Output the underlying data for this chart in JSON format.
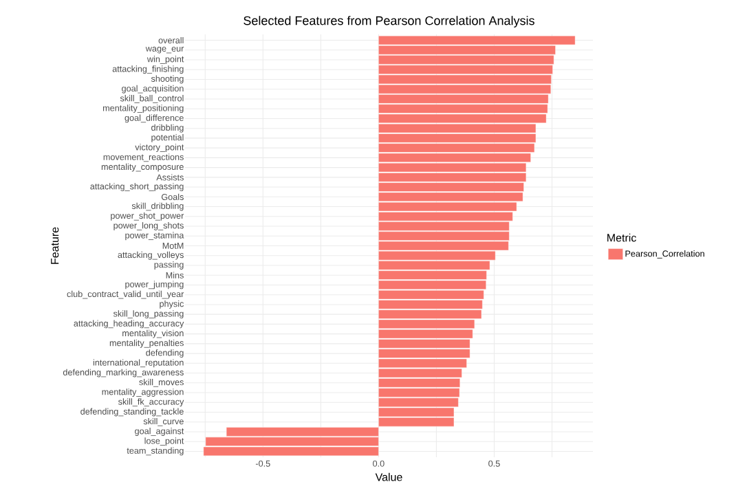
{
  "chart_data": {
    "type": "bar",
    "orientation": "horizontal",
    "title": "Selected Features from Pearson Correlation Analysis",
    "xlabel": "Value",
    "ylabel": "Feature",
    "legend_title": "Metric",
    "legend": "right",
    "grid": true,
    "categories": [
      "overall",
      "wage_eur",
      "win_point",
      "attacking_finishing",
      "shooting",
      "goal_acquisition",
      "skill_ball_control",
      "mentality_positioning",
      "goal_difference",
      "dribbling",
      "potential",
      "victory_point",
      "movement_reactions",
      "mentality_composure",
      "Assists",
      "attacking_short_passing",
      "Goals",
      "skill_dribbling",
      "power_shot_power",
      "power_long_shots",
      "power_stamina",
      "MotM",
      "attacking_volleys",
      "passing",
      "Mins",
      "power_jumping",
      "club_contract_valid_until_year",
      "physic",
      "skill_long_passing",
      "attacking_heading_accuracy",
      "mentality_vision",
      "mentality_penalties",
      "defending",
      "international_reputation",
      "defending_marking_awareness",
      "skill_moves",
      "mentality_aggression",
      "skill_fk_accuracy",
      "defending_standing_tackle",
      "skill_curve",
      "goal_against",
      "lose_point",
      "team_standing"
    ],
    "series": [
      {
        "name": "Pearson_Correlation",
        "color": "#f8766d",
        "values": [
          0.85,
          0.765,
          0.758,
          0.753,
          0.747,
          0.745,
          0.734,
          0.731,
          0.725,
          0.68,
          0.68,
          0.674,
          0.658,
          0.638,
          0.638,
          0.628,
          0.624,
          0.597,
          0.58,
          0.565,
          0.565,
          0.562,
          0.505,
          0.481,
          0.467,
          0.465,
          0.455,
          0.449,
          0.445,
          0.415,
          0.407,
          0.395,
          0.395,
          0.381,
          0.36,
          0.352,
          0.35,
          0.345,
          0.326,
          0.326,
          -0.658,
          -0.748,
          -0.757
        ]
      }
    ],
    "xlim": [
      -0.837,
      0.927
    ],
    "xticks": [
      {
        "value": -0.75,
        "label": null
      },
      -0.5,
      {
        "value": -0.25,
        "label": null
      },
      {
        "value": 0,
        "label": "0.0"
      },
      {
        "value": 0.25,
        "label": null
      },
      0.5,
      {
        "value": 0.75,
        "label": null
      }
    ]
  }
}
